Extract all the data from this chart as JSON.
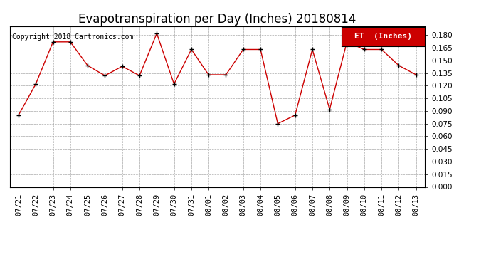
{
  "title": "Evapotranspiration per Day (Inches) 20180814",
  "copyright_text": "Copyright 2018 Cartronics.com",
  "legend_label": "ET  (Inches)",
  "legend_bg": "#cc0000",
  "legend_text_color": "#ffffff",
  "line_color": "#cc0000",
  "marker_color": "#000000",
  "background_color": "#ffffff",
  "grid_color": "#aaaaaa",
  "labels": [
    "07/21",
    "07/22",
    "07/23",
    "07/24",
    "07/25",
    "07/26",
    "07/27",
    "07/28",
    "07/29",
    "07/30",
    "07/31",
    "08/01",
    "08/02",
    "08/03",
    "08/04",
    "08/05",
    "08/06",
    "08/07",
    "08/08",
    "08/09",
    "08/10",
    "08/11",
    "08/12",
    "08/13"
  ],
  "values": [
    0.085,
    0.122,
    0.172,
    0.172,
    0.144,
    0.132,
    0.143,
    0.132,
    0.182,
    0.122,
    0.163,
    0.133,
    0.133,
    0.163,
    0.163,
    0.075,
    0.085,
    0.163,
    0.092,
    0.172,
    0.163,
    0.163,
    0.144,
    0.133
  ],
  "ylim": [
    0.0,
    0.19
  ],
  "yticks": [
    0.0,
    0.015,
    0.03,
    0.045,
    0.06,
    0.075,
    0.09,
    0.105,
    0.12,
    0.135,
    0.15,
    0.165,
    0.18
  ],
  "title_fontsize": 12,
  "copyright_fontsize": 7,
  "tick_fontsize": 7.5,
  "legend_fontsize": 8
}
